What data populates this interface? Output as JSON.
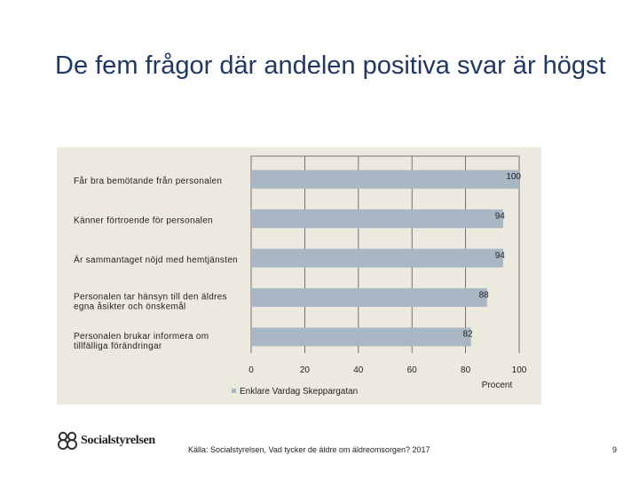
{
  "title": "De fem frågor där andelen positiva svar är högst",
  "source": "Källa: Socialstyrelsen, Vad tycker de äldre om äldreomsorgen? 2017",
  "page_number": "9",
  "logo": {
    "text": "Socialstyrelsen",
    "icon": "socialstyrelsen-logo-icon"
  },
  "colors": {
    "bar": "#a9b7c5",
    "panel": "#ece9de",
    "title": "#1f3864",
    "grid": "#555555"
  },
  "chart_data": {
    "type": "bar",
    "orientation": "horizontal",
    "categories": [
      [
        "Får bra bemötande från personalen"
      ],
      [
        "Känner förtroende för personalen"
      ],
      [
        "Är sammantaget nöjd med hemtjänsten"
      ],
      [
        "Personalen tar hänsyn till den äldres",
        "egna åsikter och önskemål"
      ],
      [
        "Personalen brukar informera om",
        "tillfälliga förändringar"
      ]
    ],
    "series": [
      {
        "name": "Enklare Vardag Skeppargatan",
        "values": [
          100,
          94,
          94,
          88,
          82
        ]
      }
    ],
    "data_labels": [
      "100",
      "94",
      "94",
      "88",
      "82"
    ],
    "xlim": [
      0,
      100
    ],
    "xticks": [
      0,
      20,
      40,
      60,
      80,
      100
    ],
    "xlabel": "Procent",
    "grid": true,
    "legend": "bottom-left"
  }
}
